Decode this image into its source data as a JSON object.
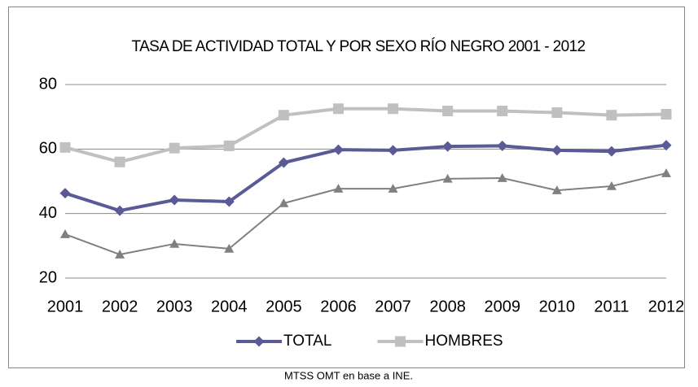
{
  "chart_data": {
    "type": "line",
    "title": "TASA DE ACTIVIDAD TOTAL Y POR SEXO RÍO NEGRO 2001 - 2012",
    "categories": [
      "2001",
      "2002",
      "2003",
      "2004",
      "2005",
      "2006",
      "2007",
      "2008",
      "2009",
      "2010",
      "2011",
      "2012"
    ],
    "series": [
      {
        "name": "TOTAL",
        "color": "#5a5a96",
        "marker": "diamond",
        "values": [
          46.3,
          40.9,
          44.2,
          43.7,
          55.8,
          59.8,
          59.6,
          60.8,
          61,
          59.6,
          59.3,
          61.2
        ]
      },
      {
        "name": "HOMBRES",
        "color": "#c0c0c0",
        "marker": "square",
        "values": [
          60.5,
          56,
          60.3,
          61,
          70.5,
          72.5,
          72.5,
          71.8,
          71.8,
          71.3,
          70.5,
          70.8
        ]
      },
      {
        "color": "#808080",
        "marker": "triangle",
        "values": [
          33.6,
          27.3,
          30.6,
          29.1,
          43.2,
          47.7,
          47.7,
          50.8,
          51,
          47.2,
          48.5,
          52.5
        ]
      }
    ],
    "ylim": [
      20,
      80
    ],
    "yticks": [
      20,
      40,
      60,
      80
    ],
    "grid": true,
    "legend": "bottom",
    "source": "MTSS OMT en base a INE."
  }
}
